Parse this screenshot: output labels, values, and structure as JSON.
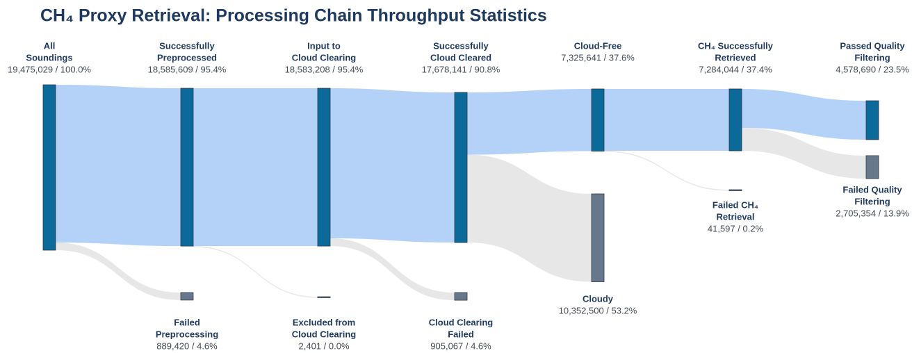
{
  "chart_data": {
    "type": "sankey",
    "title": "CH₄ Proxy Retrieval: Processing Chain Throughput Statistics",
    "nodes": [
      {
        "label": [
          "All",
          "Soundings"
        ],
        "value": 19475029,
        "value_label": "19,475,029 / 100.0%"
      },
      {
        "label": [
          "Successfully",
          "Preprocessed"
        ],
        "value": 18585609,
        "value_label": "18,585,609 / 95.4%",
        "from": 0
      },
      {
        "label": [
          "Failed",
          "Preprocessing"
        ],
        "value": 889420,
        "value_label": "889,420 / 4.6%",
        "from": 0
      },
      {
        "label": [
          "Input to",
          "Cloud Clearing"
        ],
        "value": 18583208,
        "value_label": "18,583,208 / 95.4%",
        "from": 1
      },
      {
        "label": [
          "Excluded from",
          "Cloud Clearing"
        ],
        "value": 2401,
        "value_label": "2,401 / 0.0%",
        "from": 1
      },
      {
        "label": [
          "Successfully",
          "Cloud Cleared"
        ],
        "value": 17678141,
        "value_label": "17,678,141 / 90.8%",
        "from": 3
      },
      {
        "label": [
          "Cloud Clearing",
          "Failed"
        ],
        "value": 905067,
        "value_label": "905,067 / 4.6%",
        "from": 3
      },
      {
        "label": [
          "Cloud-Free"
        ],
        "value": 7325641,
        "value_label": "7,325,641 / 37.6%",
        "from": 5
      },
      {
        "label": [
          "Cloudy"
        ],
        "value": 10352500,
        "value_label": "10,352,500 / 53.2%",
        "from": 5
      },
      {
        "label": [
          "CH₄ Successfully",
          "Retrieved"
        ],
        "value": 7284044,
        "value_label": "7,284,044 / 37.4%",
        "from": 7
      },
      {
        "label": [
          "Failed CH₄",
          "Retrieval"
        ],
        "value": 41597,
        "value_label": "41,597 / 0.2%",
        "from": 7
      },
      {
        "label": [
          "Passed Quality",
          "Filtering"
        ],
        "value": 4578690,
        "value_label": "4,578,690 / 23.5%",
        "from": 9
      },
      {
        "label": [
          "Failed Quality",
          "Filtering"
        ],
        "value": 2705354,
        "value_label": "2,705,354 / 13.9%",
        "from": 9
      }
    ],
    "main_color": "#0b6a9a",
    "fail_color": "#66788a",
    "main_link_color": "#b0cff7",
    "fail_link_color": "#e6e6e6"
  }
}
